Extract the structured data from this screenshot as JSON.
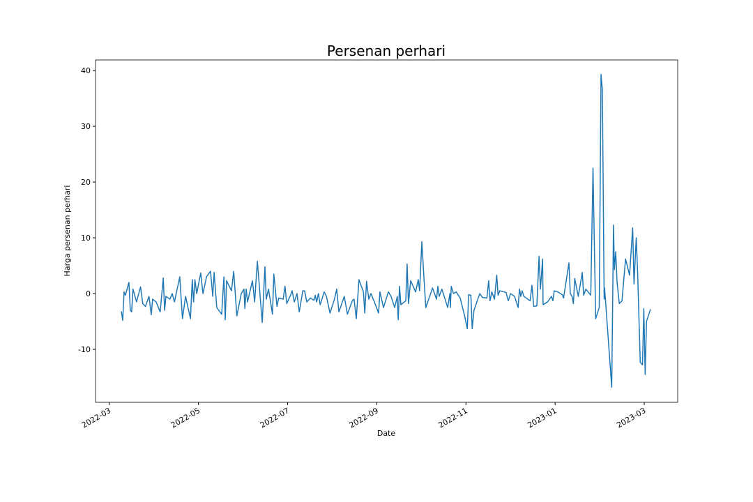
{
  "chart_data": {
    "type": "line",
    "title": "Persenan perhari",
    "x_label": "Date",
    "y_label": "Harga persenan perhari",
    "color": "#1f77b4",
    "xlim": [
      -0.31,
      12.75
    ],
    "ylim": [
      -19.5,
      41.9
    ],
    "xticks": [
      {
        "value": 0,
        "label": "2022-03"
      },
      {
        "value": 2,
        "label": "2022-05"
      },
      {
        "value": 4,
        "label": "2022-07"
      },
      {
        "value": 6,
        "label": "2022-09"
      },
      {
        "value": 8,
        "label": "2022-11"
      },
      {
        "value": 10,
        "label": "2023-01"
      },
      {
        "value": 12,
        "label": "2023-03"
      }
    ],
    "yticks": [
      -10,
      0,
      10,
      20,
      30,
      40
    ],
    "x": [
      0.27,
      0.3,
      0.33,
      0.36,
      0.44,
      0.47,
      0.5,
      0.53,
      0.61,
      0.7,
      0.75,
      0.81,
      0.89,
      0.94,
      0.97,
      1.05,
      1.14,
      1.21,
      1.24,
      1.27,
      1.36,
      1.41,
      1.46,
      1.58,
      1.64,
      1.71,
      1.82,
      1.86,
      1.89,
      1.92,
      1.96,
      2.05,
      2.1,
      2.18,
      2.27,
      2.32,
      2.35,
      2.41,
      2.52,
      2.57,
      2.6,
      2.63,
      2.74,
      2.79,
      2.86,
      2.96,
      3.02,
      3.04,
      3.07,
      3.1,
      3.21,
      3.26,
      3.32,
      3.43,
      3.49,
      3.52,
      3.57,
      3.66,
      3.69,
      3.76,
      3.8,
      3.9,
      3.94,
      3.98,
      4.07,
      4.1,
      4.15,
      4.21,
      4.26,
      4.34,
      4.38,
      4.43,
      4.51,
      4.59,
      4.62,
      4.65,
      4.69,
      4.73,
      4.82,
      4.87,
      4.95,
      5.05,
      5.1,
      5.15,
      5.27,
      5.34,
      5.45,
      5.49,
      5.54,
      5.6,
      5.7,
      5.73,
      5.77,
      5.82,
      5.87,
      5.96,
      6.04,
      6.07,
      6.15,
      6.26,
      6.32,
      6.4,
      6.46,
      6.48,
      6.51,
      6.54,
      6.65,
      6.68,
      6.71,
      6.76,
      6.87,
      6.93,
      6.96,
      7.01,
      7.06,
      7.1,
      7.25,
      7.34,
      7.37,
      7.4,
      7.46,
      7.59,
      7.64,
      7.65,
      7.67,
      7.72,
      7.78,
      7.87,
      7.97,
      8.03,
      8.06,
      8.11,
      8.14,
      8.18,
      8.31,
      8.37,
      8.47,
      8.51,
      8.54,
      8.58,
      8.64,
      8.69,
      8.72,
      8.76,
      8.9,
      8.95,
      9.0,
      9.09,
      9.17,
      9.2,
      9.23,
      9.26,
      9.3,
      9.44,
      9.48,
      9.52,
      9.59,
      9.64,
      9.67,
      9.72,
      9.73,
      9.83,
      9.92,
      9.95,
      9.98,
      10.06,
      10.16,
      10.19,
      10.31,
      10.34,
      10.38,
      10.41,
      10.44,
      10.52,
      10.61,
      10.64,
      10.69,
      10.8,
      10.85,
      10.91,
      10.99,
      11.03,
      11.06,
      11.1,
      11.11,
      11.27,
      11.31,
      11.33,
      11.36,
      11.39,
      11.44,
      11.5,
      11.58,
      11.67,
      11.74,
      11.77,
      11.82,
      11.85,
      11.91,
      11.96,
      11.99,
      12.02,
      12.05,
      12.14
    ],
    "values": [
      -3.2,
      -4.8,
      0.3,
      -0.3,
      2,
      -3,
      -3.3,
      0.8,
      -1.5,
      1.2,
      -1.8,
      -2.3,
      -0.5,
      -3.8,
      -1,
      -1.5,
      -3.3,
      2.8,
      -3,
      -0.5,
      -1,
      0,
      -1.5,
      3,
      -4.5,
      -0.5,
      -4.5,
      2.5,
      -1.5,
      2.5,
      0,
      3.7,
      0,
      3,
      4,
      -0.5,
      3.8,
      -2.5,
      -3.7,
      3,
      -4.7,
      2.3,
      0.5,
      4,
      -4,
      0,
      0.8,
      -2.7,
      0.8,
      -1.5,
      2.3,
      -1.5,
      5.8,
      -5.2,
      4.8,
      -1,
      0.8,
      -3.7,
      3.5,
      -2.3,
      -0.8,
      -1,
      1.3,
      -1.8,
      -0.2,
      0.5,
      -1.5,
      0,
      -3.3,
      0.5,
      0.5,
      -1.5,
      -0.8,
      -1.2,
      -0.3,
      -1.5,
      0,
      -2,
      0.3,
      -0.5,
      -3.5,
      -1,
      0.8,
      -3.3,
      -0.5,
      -3.7,
      -1.3,
      -1,
      -4.5,
      2.5,
      0.3,
      -3.5,
      2.2,
      -1,
      0,
      -1.8,
      -3.5,
      0.3,
      -2.5,
      0.3,
      -0.5,
      -2.5,
      -0.5,
      -4.7,
      1.3,
      -2,
      -1.3,
      5.3,
      -1.8,
      2.3,
      0.3,
      2.5,
      0.5,
      9.3,
      2.5,
      -2.5,
      1,
      -1,
      1.3,
      -0.5,
      0.8,
      -2.5,
      0,
      -2.5,
      1.3,
      0,
      0.3,
      -0.8,
      -4,
      -6.3,
      -0.2,
      -0.3,
      -6.3,
      -3,
      0,
      -0.7,
      -0.8,
      2.3,
      -1.3,
      0.3,
      -1,
      3.3,
      -0.3,
      0.5,
      0.2,
      -1.3,
      0,
      -0.5,
      -2.5,
      0.8,
      -0.5,
      0.5,
      -0.5,
      -1.3,
      1.5,
      -2.3,
      -2.2,
      6.7,
      0.8,
      6.2,
      -2,
      -1.5,
      -0.5,
      -1.3,
      0.5,
      0.3,
      -0.2,
      -0.8,
      5.5,
      0,
      -0.5,
      -1.8,
      2.7,
      -0.5,
      3.8,
      -0.3,
      0.8,
      -0.3,
      22.5,
      -4.5,
      -2.5,
      39.3,
      36.5,
      -1,
      1,
      -16.8,
      12.3,
      4.3,
      7.5,
      2,
      -1.8,
      -1.3,
      6.2,
      3.3,
      11.8,
      1.7,
      10,
      4,
      -12.3,
      -12.8,
      -2.7,
      -14.5,
      -5,
      -2.8
    ]
  }
}
